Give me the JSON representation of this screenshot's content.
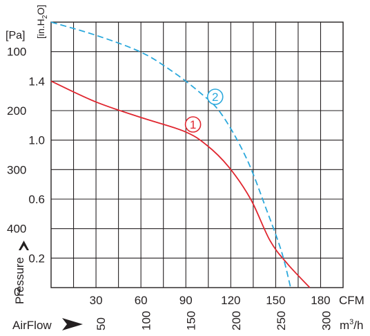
{
  "chart_data": {
    "type": "line",
    "title": "",
    "x_axes": {
      "cfm": {
        "unit_label": "CFM",
        "ticks": [
          "30",
          "60",
          "90",
          "120",
          "150",
          "180"
        ],
        "range": [
          0,
          197.5
        ]
      },
      "m3h": {
        "label": "AirFlow",
        "unit_label": "m³/h",
        "unit_base": "m",
        "unit_sup": "3",
        "unit_tail": "/h",
        "ticks": [
          "50",
          "100",
          "150",
          "200",
          "250",
          "300"
        ]
      },
      "zero_label": "0"
    },
    "y_axes": {
      "pa": {
        "unit_label": "[Pa]",
        "ticks": [
          "100",
          "200",
          "300",
          "400"
        ],
        "range": [
          0,
          450
        ]
      },
      "inh2o": {
        "unit_label": "[in.H2O]",
        "unit_main": "[in.H",
        "unit_sub": "2",
        "unit_tail": "O]",
        "ticks": [
          "0.2",
          "0.6",
          "1.0",
          "1.4"
        ]
      },
      "label": "Pressure"
    },
    "grid": true,
    "series": [
      {
        "name": "1",
        "color": "#e0262f",
        "dash": false,
        "points": [
          [
            0,
            350
          ],
          [
            30,
            315
          ],
          [
            60,
            289
          ],
          [
            90,
            265
          ],
          [
            105,
            242
          ],
          [
            120,
            205
          ],
          [
            135,
            150
          ],
          [
            148,
            80
          ],
          [
            160,
            40
          ],
          [
            175,
            0
          ]
        ]
      },
      {
        "name": "2",
        "color": "#2ba8dc",
        "dash": true,
        "points": [
          [
            0,
            450
          ],
          [
            30,
            428
          ],
          [
            60,
            400
          ],
          [
            80,
            370
          ],
          [
            100,
            332
          ],
          [
            115,
            295
          ],
          [
            132,
            220
          ],
          [
            146,
            130
          ],
          [
            156,
            60
          ],
          [
            162,
            0
          ]
        ]
      }
    ]
  }
}
